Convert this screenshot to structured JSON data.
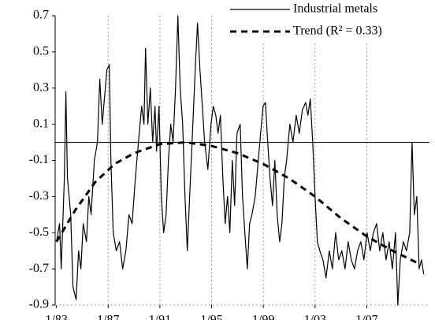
{
  "chart_data": {
    "type": "line",
    "x_scale": "time",
    "ylim": [
      -0.9,
      0.7
    ],
    "yticks": [
      -0.9,
      -0.7,
      -0.5,
      -0.3,
      -0.1,
      0.1,
      0.3,
      0.5,
      0.7
    ],
    "xlim": [
      1982.9,
      2011.85
    ],
    "xticks": [
      {
        "value": 1983,
        "label": "1/83"
      },
      {
        "value": 1987,
        "label": "1/87"
      },
      {
        "value": 1991,
        "label": "1/91"
      },
      {
        "value": 1995,
        "label": "1/95"
      },
      {
        "value": 1999,
        "label": "1/99"
      },
      {
        "value": 2003,
        "label": "1/03"
      },
      {
        "value": 2007,
        "label": "1/07"
      }
    ],
    "grid": "x",
    "reference_line": 0,
    "legend": "upper right",
    "series": [
      {
        "name": "Industrial metals",
        "color": "#000000",
        "style": "solid",
        "x": [
          1983.0,
          1983.24,
          1983.37,
          1983.49,
          1983.61,
          1983.73,
          1983.85,
          1983.98,
          1984.1,
          1984.28,
          1984.52,
          1984.71,
          1984.89,
          1985.07,
          1985.32,
          1985.5,
          1985.68,
          1985.93,
          1986.17,
          1986.35,
          1986.54,
          1986.72,
          1986.9,
          1987.09,
          1987.21,
          1987.39,
          1987.63,
          1987.88,
          1988.12,
          1988.37,
          1988.61,
          1988.85,
          1989.1,
          1989.34,
          1989.59,
          1989.77,
          1989.89,
          1990.07,
          1990.26,
          1990.44,
          1990.62,
          1990.74,
          1990.93,
          1991.11,
          1991.29,
          1991.48,
          1991.66,
          1991.84,
          1992.02,
          1992.21,
          1992.39,
          1992.57,
          1992.76,
          1992.94,
          1993.12,
          1993.3,
          1993.55,
          1993.73,
          1993.91,
          1994.1,
          1994.28,
          1994.46,
          1994.71,
          1994.95,
          1995.13,
          1995.32,
          1995.5,
          1995.68,
          1995.87,
          1996.05,
          1996.23,
          1996.41,
          1996.6,
          1996.78,
          1996.96,
          1997.21,
          1997.39,
          1997.57,
          1997.76,
          1997.94,
          1998.12,
          1998.37,
          1998.61,
          1998.79,
          1998.98,
          1999.16,
          1999.34,
          1999.52,
          1999.71,
          1999.89,
          2000.07,
          2000.26,
          2000.44,
          2000.62,
          2000.8,
          2001.05,
          2001.29,
          2001.54,
          2001.78,
          2002.02,
          2002.27,
          2002.45,
          2002.63,
          2002.82,
          2003.0,
          2003.18,
          2003.37,
          2003.61,
          2003.85,
          2004.1,
          2004.34,
          2004.59,
          2004.83,
          2005.07,
          2005.32,
          2005.56,
          2005.8,
          2006.05,
          2006.29,
          2006.54,
          2006.78,
          2007.02,
          2007.27,
          2007.51,
          2007.76,
          2008.0,
          2008.24,
          2008.49,
          2008.73,
          2008.98,
          2009.22,
          2009.4,
          2009.59,
          2009.83,
          2010.07,
          2010.32,
          2010.5,
          2010.68,
          2010.87,
          2011.05,
          2011.23,
          2011.41
        ],
        "values": [
          -0.55,
          -0.45,
          -0.7,
          -0.45,
          -0.2,
          0.28,
          -0.2,
          -0.3,
          -0.4,
          -0.8,
          -0.87,
          -0.6,
          -0.7,
          -0.45,
          -0.55,
          -0.3,
          -0.4,
          -0.1,
          0.0,
          0.35,
          0.1,
          0.25,
          0.4,
          0.43,
          -0.1,
          -0.5,
          -0.6,
          -0.55,
          -0.7,
          -0.6,
          -0.4,
          -0.45,
          -0.2,
          0.0,
          0.2,
          0.1,
          0.52,
          0.1,
          0.3,
          0.0,
          0.2,
          -0.05,
          0.2,
          -0.3,
          -0.5,
          -0.4,
          -0.1,
          0.1,
          0.0,
          0.3,
          0.7,
          0.3,
          0.1,
          -0.3,
          -0.6,
          -0.3,
          0.1,
          0.4,
          0.66,
          0.4,
          0.2,
          0.0,
          -0.15,
          0.1,
          0.2,
          0.15,
          0.05,
          0.15,
          -0.2,
          -0.45,
          -0.3,
          -0.5,
          -0.1,
          -0.35,
          0.05,
          0.1,
          -0.3,
          -0.5,
          -0.7,
          -0.45,
          -0.4,
          -0.3,
          -0.1,
          0.05,
          0.2,
          0.22,
          0.0,
          -0.2,
          -0.35,
          -0.1,
          -0.4,
          -0.55,
          -0.45,
          -0.2,
          -0.1,
          0.1,
          0.0,
          0.15,
          0.05,
          0.18,
          0.22,
          0.15,
          0.24,
          0.0,
          -0.3,
          -0.55,
          -0.6,
          -0.65,
          -0.75,
          -0.6,
          -0.7,
          -0.5,
          -0.65,
          -0.6,
          -0.7,
          -0.55,
          -0.65,
          -0.7,
          -0.6,
          -0.55,
          -0.65,
          -0.5,
          -0.6,
          -0.5,
          -0.45,
          -0.6,
          -0.5,
          -0.65,
          -0.55,
          -0.7,
          -0.5,
          -0.9,
          -0.65,
          -0.55,
          -0.6,
          -0.5,
          0.0,
          -0.4,
          -0.3,
          -0.7,
          -0.65,
          -0.73
        ]
      },
      {
        "name": "Trend  (R² = 0.33)",
        "color": "#000000",
        "style": "dashed",
        "x": [
          1983,
          1984.5,
          1986,
          1987.5,
          1989,
          1991,
          1993,
          1995,
          1997,
          1999,
          2001,
          2003,
          2005,
          2007,
          2009,
          2011
        ],
        "values": [
          -0.55,
          -0.37,
          -0.22,
          -0.12,
          -0.06,
          -0.01,
          0.0,
          -0.02,
          -0.06,
          -0.12,
          -0.2,
          -0.3,
          -0.42,
          -0.52,
          -0.6,
          -0.67
        ]
      }
    ]
  }
}
